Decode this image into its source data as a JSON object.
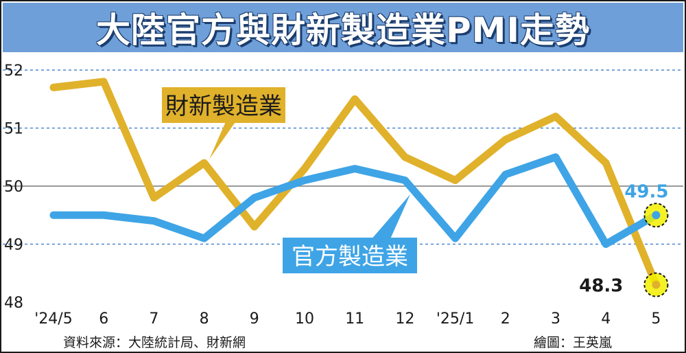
{
  "title": "大陸官方與財新製造業PMI走勢",
  "source": "資料來源：大陸統計局、財新網",
  "credit": "繪圖：王英嵐",
  "colors": {
    "caixin": "#e0b12a",
    "official": "#3ea4e6",
    "title_bg": "#6f9fd8",
    "highlight": "#f2f000"
  },
  "chart_data": {
    "type": "line",
    "categories": [
      "'24/5",
      "6",
      "7",
      "8",
      "9",
      "10",
      "11",
      "12",
      "'25/1",
      "2",
      "3",
      "4",
      "5"
    ],
    "ylim": [
      48,
      52
    ],
    "yticks": [
      48,
      49,
      50,
      51,
      52
    ],
    "series": [
      {
        "name": "財新製造業",
        "values": [
          51.7,
          51.8,
          49.8,
          50.4,
          49.3,
          50.3,
          51.5,
          50.5,
          50.1,
          50.8,
          51.2,
          50.4,
          48.3
        ]
      },
      {
        "name": "官方製造業",
        "values": [
          49.5,
          49.5,
          49.4,
          49.1,
          49.8,
          50.1,
          50.3,
          50.1,
          49.1,
          50.2,
          50.5,
          49.0,
          49.5
        ]
      }
    ],
    "annotations": [
      {
        "series": 1,
        "index": 12,
        "label": "49.5"
      },
      {
        "series": 0,
        "index": 12,
        "label": "48.3"
      }
    ]
  }
}
